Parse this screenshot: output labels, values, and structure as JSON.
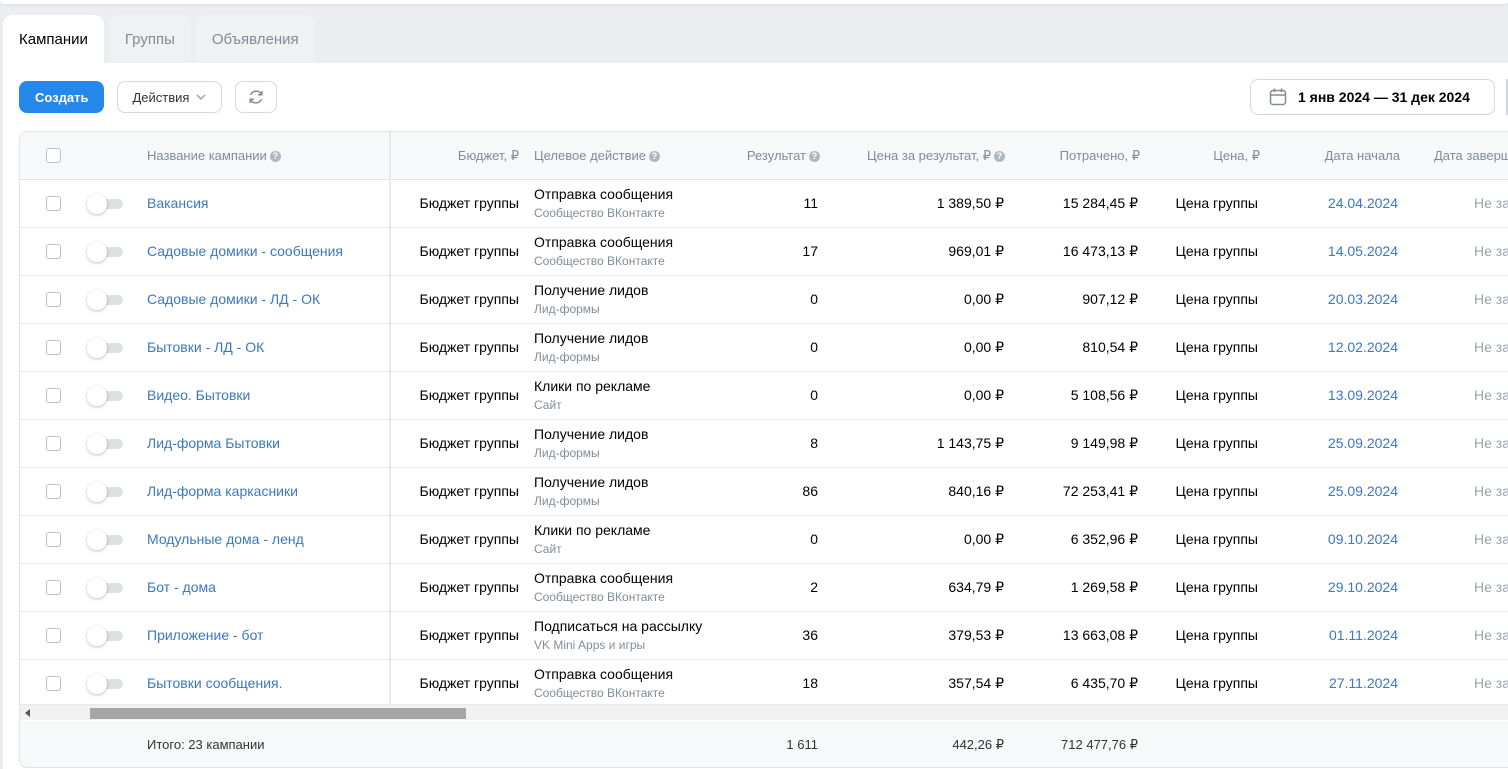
{
  "tabs": [
    {
      "label": "Кампании",
      "active": true
    },
    {
      "label": "Группы",
      "active": false
    },
    {
      "label": "Объявления",
      "active": false
    }
  ],
  "toolbar": {
    "create_label": "Создать",
    "actions_label": "Действия",
    "refresh_icon": "refresh-icon"
  },
  "date_range": "1 янв 2024 — 31 дек 2024",
  "columns": {
    "name": "Название кампании",
    "budget": "Бюджет, ₽",
    "goal": "Целевое действие",
    "result": "Результат",
    "cpr": "Цена за результат, ₽",
    "spent": "Потрачено, ₽",
    "price": "Цена, ₽",
    "start": "Дата начала",
    "end": "Дата заверш"
  },
  "rows": [
    {
      "name": "Вакансия",
      "budget": "Бюджет группы",
      "goal": "Отправка сообщения",
      "goal_sub": "Сообщество ВКонтакте",
      "result": "11",
      "cpr": "1 389,50 ₽",
      "spent": "15 284,45 ₽",
      "price": "Цена группы",
      "start": "24.04.2024",
      "end": "Не за"
    },
    {
      "name": "Садовые домики - сообщения",
      "budget": "Бюджет группы",
      "goal": "Отправка сообщения",
      "goal_sub": "Сообщество ВКонтакте",
      "result": "17",
      "cpr": "969,01 ₽",
      "spent": "16 473,13 ₽",
      "price": "Цена группы",
      "start": "14.05.2024",
      "end": "Не за"
    },
    {
      "name": "Садовые домики - ЛД - ОК",
      "budget": "Бюджет группы",
      "goal": "Получение лидов",
      "goal_sub": "Лид-формы",
      "result": "0",
      "cpr": "0,00 ₽",
      "spent": "907,12 ₽",
      "price": "Цена группы",
      "start": "20.03.2024",
      "end": "Не за"
    },
    {
      "name": "Бытовки - ЛД - ОК",
      "budget": "Бюджет группы",
      "goal": "Получение лидов",
      "goal_sub": "Лид-формы",
      "result": "0",
      "cpr": "0,00 ₽",
      "spent": "810,54 ₽",
      "price": "Цена группы",
      "start": "12.02.2024",
      "end": "Не за"
    },
    {
      "name": "Видео. Бытовки",
      "budget": "Бюджет группы",
      "goal": "Клики по рекламе",
      "goal_sub": "Сайт",
      "result": "0",
      "cpr": "0,00 ₽",
      "spent": "5 108,56 ₽",
      "price": "Цена группы",
      "start": "13.09.2024",
      "end": "Не за"
    },
    {
      "name": "Лид-форма Бытовки",
      "budget": "Бюджет группы",
      "goal": "Получение лидов",
      "goal_sub": "Лид-формы",
      "result": "8",
      "cpr": "1 143,75 ₽",
      "spent": "9 149,98 ₽",
      "price": "Цена группы",
      "start": "25.09.2024",
      "end": "Не за"
    },
    {
      "name": "Лид-форма каркасники",
      "budget": "Бюджет группы",
      "goal": "Получение лидов",
      "goal_sub": "Лид-формы",
      "result": "86",
      "cpr": "840,16 ₽",
      "spent": "72 253,41 ₽",
      "price": "Цена группы",
      "start": "25.09.2024",
      "end": "Не за"
    },
    {
      "name": "Модульные дома - ленд",
      "budget": "Бюджет группы",
      "goal": "Клики по рекламе",
      "goal_sub": "Сайт",
      "result": "0",
      "cpr": "0,00 ₽",
      "spent": "6 352,96 ₽",
      "price": "Цена группы",
      "start": "09.10.2024",
      "end": "Не за"
    },
    {
      "name": "Бот - дома",
      "budget": "Бюджет группы",
      "goal": "Отправка сообщения",
      "goal_sub": "Сообщество ВКонтакте",
      "result": "2",
      "cpr": "634,79 ₽",
      "spent": "1 269,58 ₽",
      "price": "Цена группы",
      "start": "29.10.2024",
      "end": "Не за"
    },
    {
      "name": "Приложение - бот",
      "budget": "Бюджет группы",
      "goal": "Подписаться на рассылку",
      "goal_sub": "VK Mini Apps и игры",
      "result": "36",
      "cpr": "379,53 ₽",
      "spent": "13 663,08 ₽",
      "price": "Цена группы",
      "start": "01.11.2024",
      "end": "Не за"
    },
    {
      "name": "Бытовки сообщения.",
      "budget": "Бюджет группы",
      "goal": "Отправка сообщения",
      "goal_sub": "Сообщество ВКонтакте",
      "result": "18",
      "cpr": "357,54 ₽",
      "spent": "6 435,70 ₽",
      "price": "Цена группы",
      "start": "27.11.2024",
      "end": "Не за"
    }
  ],
  "totals": {
    "label": "Итого: 23 кампании",
    "result": "1 611",
    "cpr": "442,26 ₽",
    "spent": "712 477,76 ₽"
  }
}
